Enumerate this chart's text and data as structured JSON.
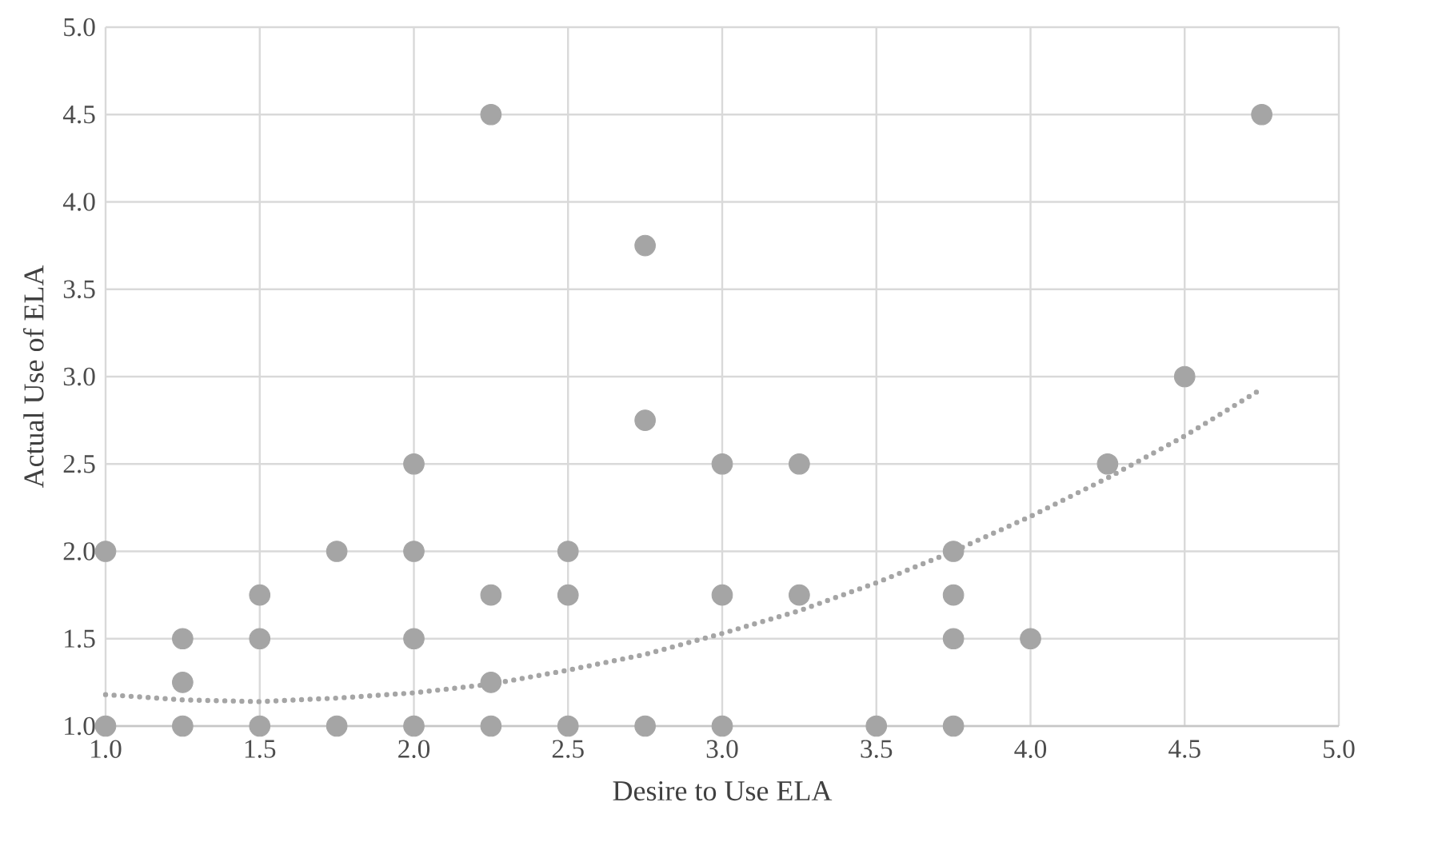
{
  "chart_data": {
    "type": "scatter",
    "xlabel": "Desire to Use ELA",
    "ylabel": "Actual Use of ELA",
    "xlim": [
      1,
      5
    ],
    "ylim": [
      1,
      5
    ],
    "xticks": [
      {
        "value": 1,
        "label": "1.0"
      },
      {
        "value": 1.5,
        "label": "1.5"
      },
      {
        "value": 2,
        "label": "2.0"
      },
      {
        "value": 2.5,
        "label": "2.5"
      },
      {
        "value": 3,
        "label": "3.0"
      },
      {
        "value": 3.5,
        "label": "3.5"
      },
      {
        "value": 4,
        "label": "4.0"
      },
      {
        "value": 4.5,
        "label": "4.5"
      },
      {
        "value": 5,
        "label": "5.0"
      }
    ],
    "yticks": [
      {
        "value": 1,
        "label": "1.0"
      },
      {
        "value": 1.5,
        "label": "1.5"
      },
      {
        "value": 2,
        "label": "2.0"
      },
      {
        "value": 2.5,
        "label": "2.5"
      },
      {
        "value": 3,
        "label": "3.0"
      },
      {
        "value": 3.5,
        "label": "3.5"
      },
      {
        "value": 4,
        "label": "4.0"
      },
      {
        "value": 4.5,
        "label": "4.5"
      },
      {
        "value": 5,
        "label": "5.0"
      }
    ],
    "grid": true,
    "series": [
      {
        "marker": "circle",
        "color": "#a5a5a5",
        "x": [
          1,
          1,
          1.25,
          1.25,
          1.25,
          1.5,
          1.5,
          1.5,
          1.75,
          1.75,
          2,
          2,
          2,
          2,
          2.25,
          2.25,
          2.25,
          2.25,
          2.5,
          2.5,
          2.5,
          2.75,
          2.75,
          2.75,
          3,
          3,
          3,
          3.25,
          3.25,
          3.5,
          3.75,
          3.75,
          3.75,
          3.75,
          4,
          4.25,
          4.5,
          4.75
        ],
        "values": [
          2,
          1,
          1.5,
          1.25,
          1,
          1.75,
          1.5,
          1,
          2,
          1,
          2.5,
          2,
          1.5,
          1,
          4.5,
          1.75,
          1.25,
          1,
          2,
          1.75,
          1,
          3.75,
          2.75,
          1,
          2.5,
          1.75,
          1,
          2.5,
          1.75,
          1,
          2,
          1.75,
          1.5,
          1,
          1.5,
          2.5,
          3,
          4.5
        ]
      },
      {
        "type": "line",
        "marker": "none",
        "line_style": "dotted",
        "color": "#a5a5a5",
        "x": [
          1,
          1.25,
          1.5,
          1.75,
          2,
          2.25,
          2.5,
          2.75,
          3,
          3.25,
          3.5,
          3.75,
          4,
          4.25,
          4.5,
          4.75
        ],
        "values": [
          1.18,
          1.15,
          1.14,
          1.16,
          1.19,
          1.24,
          1.32,
          1.41,
          1.53,
          1.66,
          1.82,
          2.0,
          2.2,
          2.42,
          2.66,
          2.93
        ]
      }
    ]
  }
}
